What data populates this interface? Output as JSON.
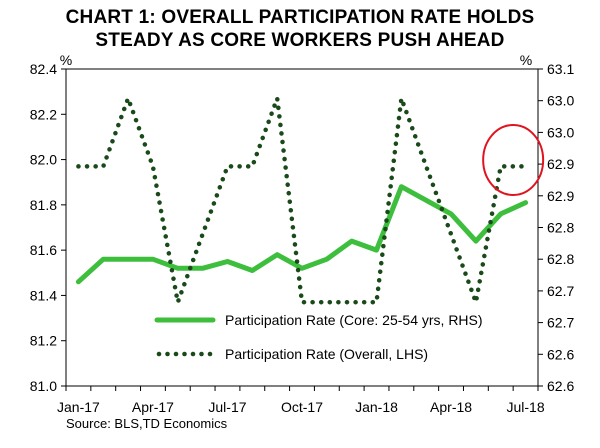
{
  "chart_data": {
    "type": "line",
    "title_line1": "CHART 1: OVERALL PARTICIPATION RATE HOLDS",
    "title_line2": "STEADY AS CORE WORKERS PUSH AHEAD",
    "left_axis_unit": "%",
    "right_axis_unit": "%",
    "left_axis": {
      "ylim": [
        81.0,
        82.4
      ],
      "ticks": [
        81.0,
        81.2,
        81.4,
        81.6,
        81.8,
        82.0,
        82.2,
        82.4
      ],
      "tick_labels": [
        "81.0",
        "81.2",
        "81.4",
        "81.6",
        "81.8",
        "82.0",
        "82.2",
        "82.4"
      ]
    },
    "right_axis": {
      "ylim": [
        62.6,
        63.1
      ],
      "ticks": [
        62.6,
        62.65,
        62.7,
        62.75,
        62.8,
        62.85,
        62.9,
        62.95,
        63.0,
        63.05,
        63.1
      ],
      "tick_labels": [
        "62.6",
        "62.6",
        "62.7",
        "62.7",
        "62.8",
        "62.8",
        "62.9",
        "62.9",
        "63.0",
        "63.0",
        "63.1"
      ]
    },
    "x_tick_labels": [
      "Jan-17",
      "Apr-17",
      "Jul-17",
      "Oct-17",
      "Jan-18",
      "Apr-18",
      "Jul-18"
    ],
    "x_tick_indices": [
      0,
      3,
      6,
      9,
      12,
      15,
      18
    ],
    "months": [
      "Jan-17",
      "Feb-17",
      "Mar-17",
      "Apr-17",
      "May-17",
      "Jun-17",
      "Jul-17",
      "Aug-17",
      "Sep-17",
      "Oct-17",
      "Nov-17",
      "Dec-17",
      "Jan-18",
      "Feb-18",
      "Mar-18",
      "Apr-18",
      "May-18",
      "Jun-18",
      "Jul-18"
    ],
    "series": [
      {
        "name": "Participation Rate (Core: 25-54 yrs, RHS)",
        "axis": "right",
        "style": "solid",
        "color": "#3dbf3d",
        "values": [
          62.7643,
          62.8,
          62.8,
          62.8,
          62.7857,
          62.7857,
          62.7964,
          62.7821,
          62.8071,
          62.7857,
          62.8,
          62.8286,
          62.8143,
          62.9143,
          62.8929,
          62.8714,
          62.8286,
          62.8714,
          62.8893
        ]
      },
      {
        "name": "Participation Rate (Overall, LHS)",
        "axis": "left",
        "style": "dotted",
        "color": "#1a4a1a",
        "values": [
          81.97,
          81.97,
          82.27,
          81.97,
          81.37,
          81.67,
          81.97,
          81.97,
          82.27,
          81.37,
          81.37,
          81.37,
          81.37,
          82.27,
          81.97,
          81.67,
          81.37,
          81.97,
          81.97
        ]
      }
    ],
    "legend_position": "lower-center",
    "annotation": "red circle highlighting Jun-18 to Jul-18",
    "annotation_color": "#e0141e",
    "source": "Source: BLS,TD Economics"
  }
}
